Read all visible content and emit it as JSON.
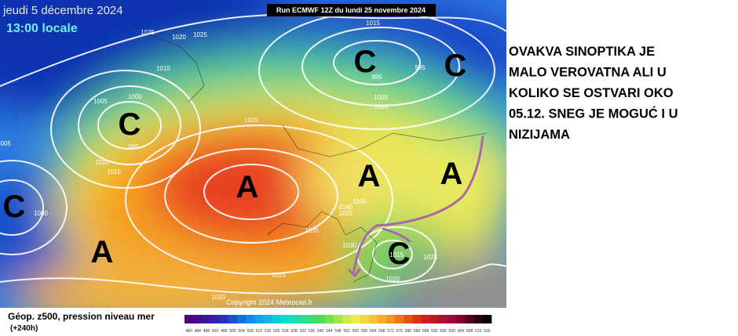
{
  "map": {
    "date": "jeudi 5 décembre 2024",
    "time": "13:00 locale",
    "run": "Run ECMWF 12Z du lundi 25 novembre 2024",
    "copyright": "Copyright 2024 Meteociel.fr",
    "centers": [
      "C",
      "C",
      "C",
      "C",
      "C",
      "A",
      "A",
      "A",
      "A"
    ],
    "isobar_labels": [
      "1025",
      "1020",
      "1025",
      "1015",
      "1005",
      "1000",
      "995",
      "1010",
      "1015",
      "1020",
      "1015",
      "995",
      "995",
      "1005",
      "1010",
      "1045",
      "1040",
      "1035",
      "1035",
      "1030",
      "1025",
      "1025",
      "1015",
      "1020",
      "1020",
      "1000",
      "1005"
    ]
  },
  "annotation": {
    "lines": [
      "OVAKVA SINOPTIKA JE",
      "MALO VEROVATNA ALI U",
      "KOLIKO SE OSTVARI OKO",
      "05.12. SNEG JE MOGUĆ I U",
      "NIZIJAMA"
    ]
  },
  "legend": {
    "title": "Géop. z500, pression niveau mer",
    "lead": "(+240h)",
    "scale": [
      "480",
      "484",
      "488",
      "492",
      "496",
      "500",
      "504",
      "508",
      "512",
      "516",
      "520",
      "524",
      "528",
      "532",
      "536",
      "540",
      "544",
      "548",
      "552",
      "556",
      "560",
      "564",
      "568",
      "572",
      "576",
      "580",
      "584",
      "588",
      "592",
      "596",
      "600",
      "604",
      "608",
      "612",
      "616"
    ]
  }
}
